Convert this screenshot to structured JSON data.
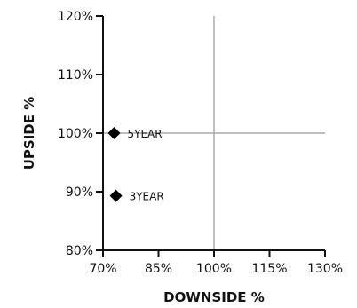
{
  "chart_data": {
    "type": "scatter",
    "xlabel": "DOWNSIDE %",
    "ylabel": "UPSIDE %",
    "xlim": [
      70,
      130
    ],
    "ylim": [
      80,
      120
    ],
    "x_ticks": [
      70,
      85,
      100,
      115,
      130
    ],
    "y_ticks": [
      80,
      90,
      100,
      110,
      120
    ],
    "x_tick_labels": [
      "70%",
      "85%",
      "100%",
      "115%",
      "130%"
    ],
    "y_tick_labels": [
      "80%",
      "90%",
      "100%",
      "110%",
      "120%"
    ],
    "reference_lines": {
      "x": 100,
      "y": 100
    },
    "points": [
      {
        "label": "5YEAR",
        "x": 73,
        "y": 100
      },
      {
        "label": "3YEAR",
        "x": 73.5,
        "y": 89.3
      }
    ],
    "colors": {
      "axis": "#111111",
      "reference": "#aaaaaa",
      "marker": "#000000"
    }
  }
}
